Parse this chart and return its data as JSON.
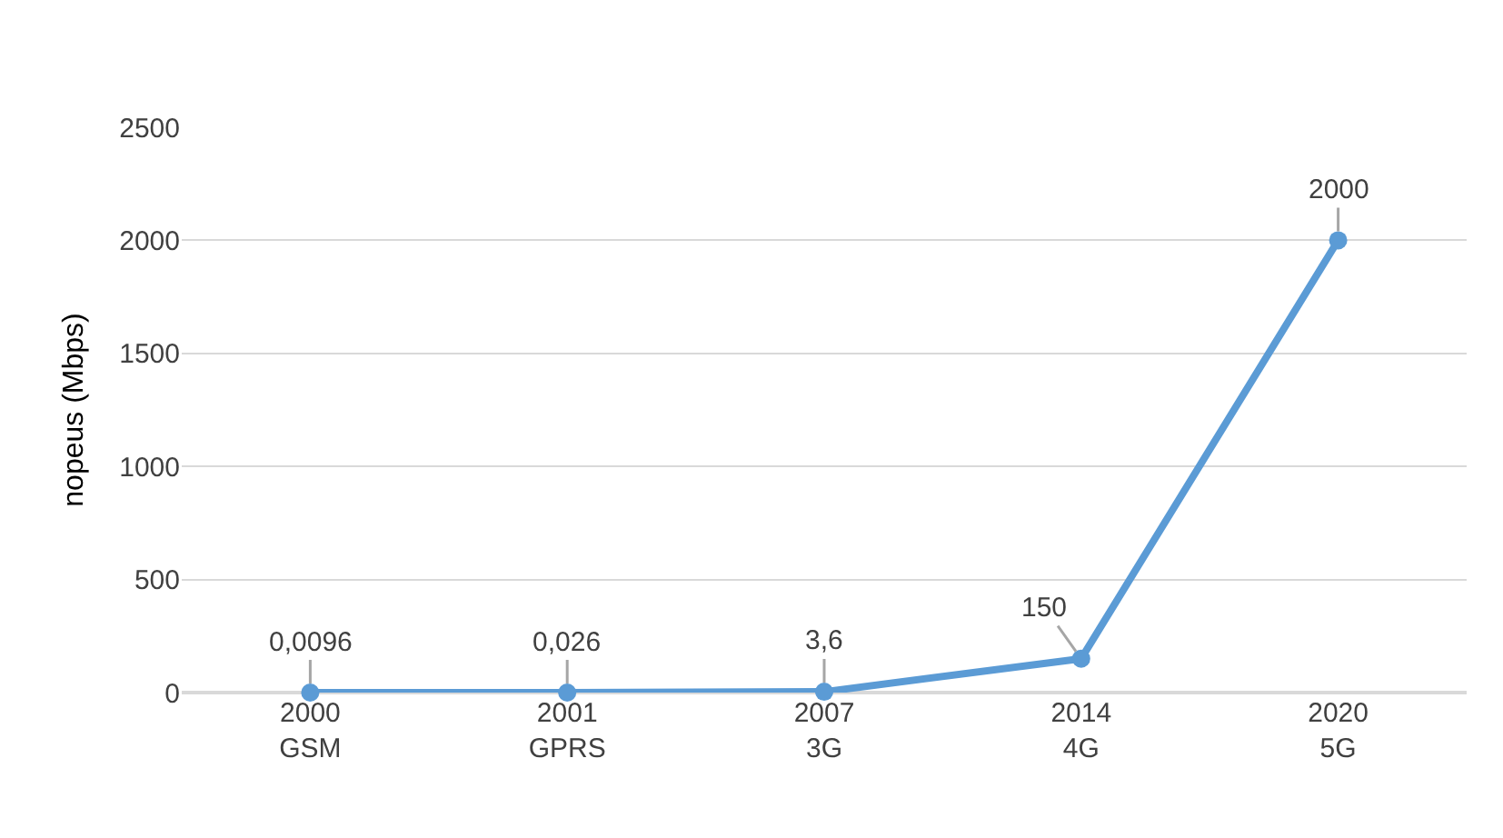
{
  "chart_data": {
    "type": "line",
    "ylabel": "nopeus (Mbps)",
    "categories": [
      "2000\nGSM",
      "2001\nGPRS",
      "2007\n3G",
      "2014\n4G",
      "2020\n5G"
    ],
    "series": [
      {
        "color": "#5b9bd5",
        "values": [
          0.0096,
          0.026,
          3.6,
          150,
          2000
        ],
        "value_labels": [
          "0,0096",
          "0,026",
          "3,6",
          "150",
          "2000"
        ]
      }
    ],
    "ylim": [
      0,
      2500
    ],
    "yticks": [
      0,
      500,
      1000,
      1500,
      2000,
      2500
    ],
    "grid": "y",
    "legend": false,
    "marker": "circle",
    "line_style": "solid"
  }
}
